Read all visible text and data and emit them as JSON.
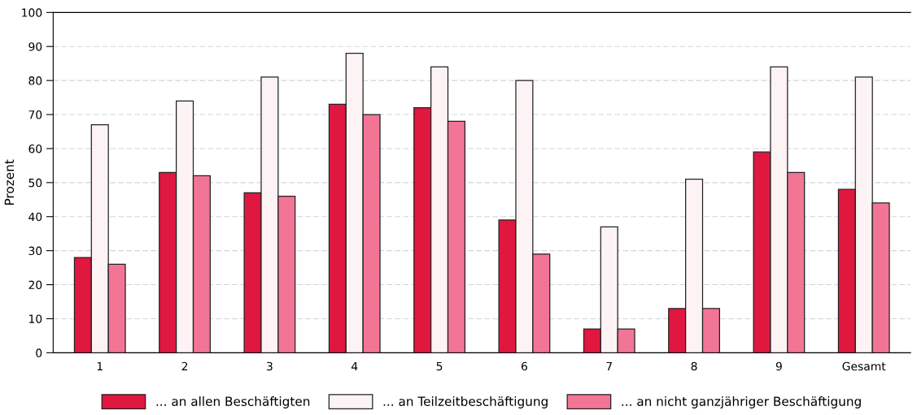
{
  "chart_data": {
    "type": "bar",
    "ylabel": "Prozent",
    "categories": [
      "1",
      "2",
      "3",
      "4",
      "5",
      "6",
      "7",
      "8",
      "9",
      "Gesamt"
    ],
    "series": [
      {
        "name": "... an allen Beschäftigten",
        "color": "#e0173f",
        "values": [
          28,
          53,
          47,
          73,
          72,
          39,
          7,
          13,
          59,
          48
        ]
      },
      {
        "name": "... an Teilzeitbeschäftigung",
        "color": "#fdf3f5",
        "values": [
          67,
          74,
          81,
          88,
          84,
          80,
          37,
          51,
          84,
          81
        ]
      },
      {
        "name": "... an nicht ganzjähriger Beschäftigung",
        "color": "#f27595",
        "values": [
          26,
          52,
          46,
          70,
          68,
          29,
          7,
          13,
          53,
          44
        ]
      }
    ],
    "ylim": [
      0,
      100
    ],
    "yticks": [
      0,
      10,
      20,
      30,
      40,
      50,
      60,
      70,
      80,
      90,
      100
    ],
    "grid": "y",
    "legend": "bottom"
  }
}
